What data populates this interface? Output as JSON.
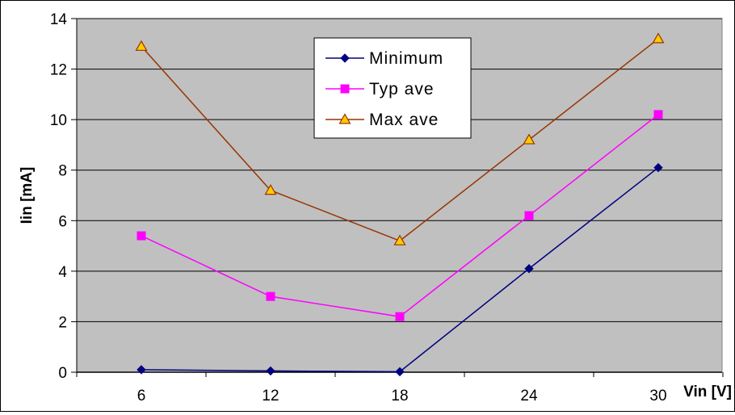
{
  "chart_data": {
    "type": "line",
    "x": [
      6,
      12,
      18,
      24,
      30
    ],
    "series": [
      {
        "name": "Minimum",
        "values": [
          0.1,
          0.05,
          0.02,
          4.1,
          8.1
        ],
        "color": "#000080",
        "marker": "diamond"
      },
      {
        "name": "Typ ave",
        "values": [
          5.4,
          3.0,
          2.2,
          6.2,
          10.2
        ],
        "color": "#FF00FF",
        "marker": "square"
      },
      {
        "name": "Max ave",
        "values": [
          12.9,
          7.2,
          5.2,
          9.2,
          13.2
        ],
        "color": "#993300",
        "marker": "triangle",
        "marker_fill": "#FFCC00"
      }
    ],
    "xlabel": "Vin [V]",
    "ylabel": "Iin [mA]",
    "ylim": [
      0,
      14
    ],
    "yticks": [
      "0",
      "2",
      "4",
      "6",
      "8",
      "10",
      "12",
      "14"
    ],
    "xticks": [
      "6",
      "12",
      "18",
      "24",
      "30"
    ],
    "grid": "horizontal",
    "legend_position": "top-center",
    "plot_background": "#C0C0C0"
  }
}
